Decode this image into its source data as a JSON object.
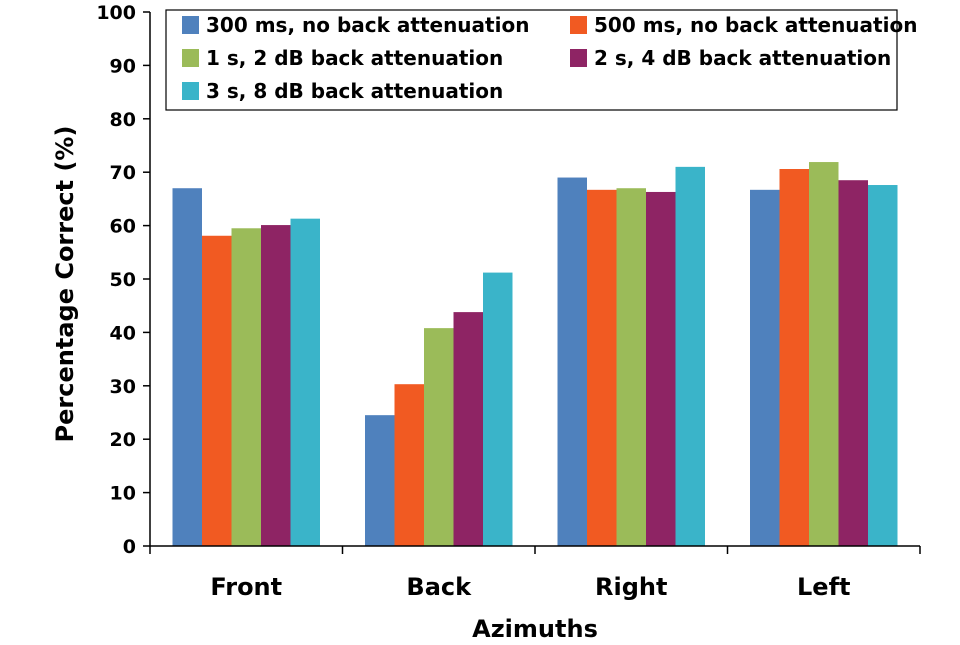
{
  "chart_data": {
    "type": "bar",
    "title": "",
    "xlabel": "Azimuths",
    "ylabel": "Percentage Correct (%)",
    "ylim": [
      0,
      100
    ],
    "yticks": [
      0,
      10,
      20,
      30,
      40,
      50,
      60,
      70,
      80,
      90,
      100
    ],
    "grid": false,
    "legend_position": "top",
    "categories": [
      "Front",
      "Back",
      "Right",
      "Left"
    ],
    "series": [
      {
        "name": "300 ms, no back attenuation",
        "color": "#4F81BD",
        "values": [
          67.0,
          24.5,
          69.0,
          66.7
        ]
      },
      {
        "name": "500 ms, no back attenuation",
        "color": "#F15A22",
        "values": [
          58.1,
          30.3,
          66.7,
          70.6
        ]
      },
      {
        "name": "1 s, 2 dB back attenuation",
        "color": "#9BBB59",
        "values": [
          59.5,
          40.8,
          67.0,
          71.9
        ]
      },
      {
        "name": "2 s, 4 dB back attenuation",
        "color": "#8E2464",
        "values": [
          60.1,
          43.8,
          66.3,
          68.5
        ]
      },
      {
        "name": "3 s, 8 dB back attenuation",
        "color": "#3AB4C9",
        "values": [
          61.3,
          51.2,
          71.0,
          67.6
        ]
      }
    ]
  }
}
